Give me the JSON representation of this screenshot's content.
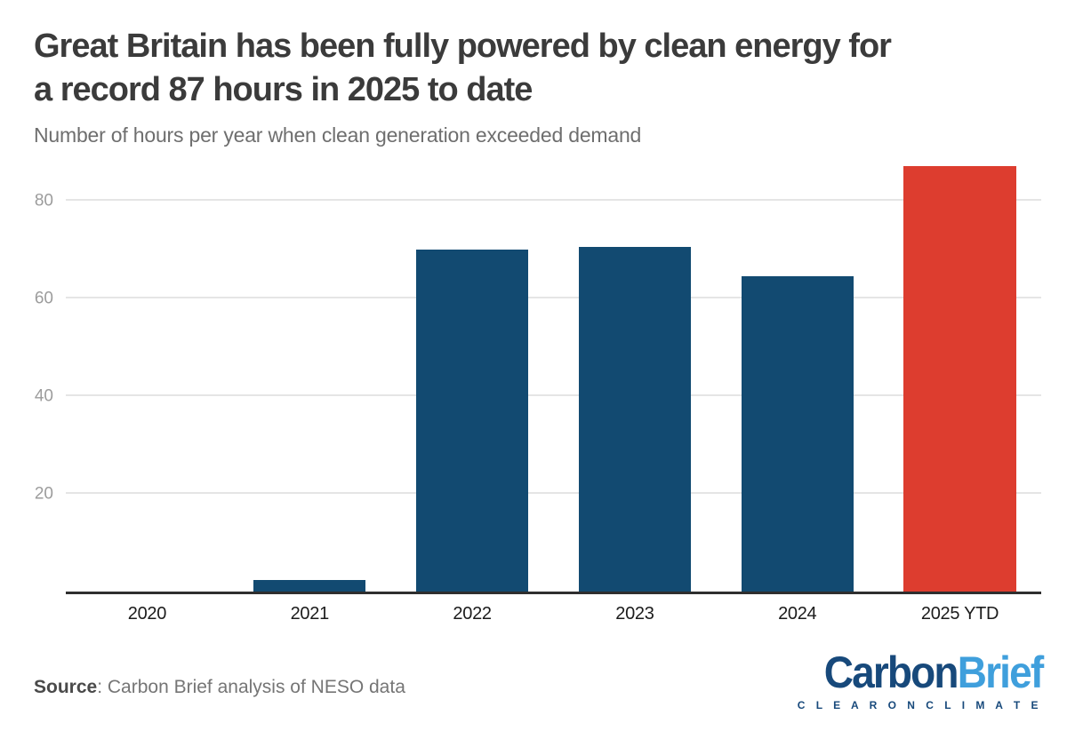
{
  "header": {
    "title_line1": "Great Britain has been fully powered by clean energy for",
    "title_line2": "a record 87 hours in 2025 to date",
    "subtitle": "Number of hours per year when clean generation exceeded demand"
  },
  "chart_data": {
    "type": "bar",
    "title": "Great Britain has been fully powered by clean energy for a record 87 hours in 2025 to date",
    "subtitle": "Number of hours per year when clean generation exceeded demand",
    "categories": [
      "2020",
      "2021",
      "2022",
      "2023",
      "2024",
      "2025 YTD"
    ],
    "values": [
      0,
      2.3,
      70,
      70.5,
      64.5,
      87
    ],
    "bar_colors": [
      "#124a71",
      "#124a71",
      "#124a71",
      "#124a71",
      "#124a71",
      "#dd3d2f"
    ],
    "highlight_index": 5,
    "highlight_color": "#dd3d2f",
    "default_color": "#124a71",
    "yticks": [
      20,
      40,
      60,
      80
    ],
    "ylim": [
      0,
      88
    ],
    "xlabel": "",
    "ylabel": "",
    "grid": "horizontal",
    "legend": "none"
  },
  "footer": {
    "source_label": "Source",
    "source_text": ": Carbon Brief analysis of NESO data",
    "logo": {
      "part1": "Carbon",
      "part2": "Brief",
      "tagline": "C L E A R   O N   C L I M A T E"
    }
  },
  "colors": {
    "background": "#ffffff",
    "title_text": "#3b3b3b",
    "subtitle_text": "#6e6e6e",
    "bar_blue": "#124a71",
    "bar_red": "#dd3d2f",
    "gridline": "#e5e5e5",
    "axis_line": "#2e2e2e",
    "ytick_text": "#9c9c9c",
    "xtick_text": "#1b1b1b",
    "logo_dark_blue": "#17497b",
    "logo_light_blue": "#3f9fdc"
  }
}
